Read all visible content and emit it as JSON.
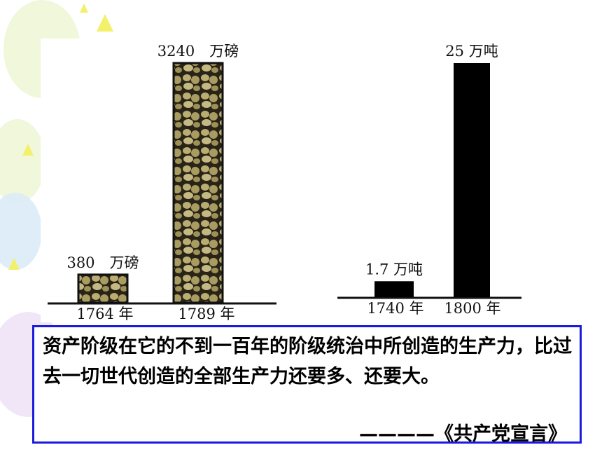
{
  "chart_data": [
    {
      "type": "bar",
      "categories": [
        "1764 年",
        "1789 年"
      ],
      "values": [
        380,
        3240
      ],
      "value_labels": [
        "380　万磅",
        "3240　万磅"
      ],
      "unit": "万磅",
      "bar_style": "textured",
      "colors": {
        "fill": "#9a8a55",
        "edge": "#111111"
      }
    },
    {
      "type": "bar",
      "categories": [
        "1740 年",
        "1800 年"
      ],
      "values": [
        1.7,
        25
      ],
      "value_labels": [
        "1.7 万吨",
        "25 万吨"
      ],
      "unit": "万吨",
      "bar_style": "solid",
      "colors": {
        "fill": "#000000"
      }
    }
  ],
  "quote": {
    "text": "资产阶级在它的不到一百年的阶级统治中所创造的生产力，比过去一切世代创造的全部生产力还要多、还要大。",
    "source": "————《共产党宣言》"
  },
  "colors": {
    "box_border": "#1a1adf"
  }
}
